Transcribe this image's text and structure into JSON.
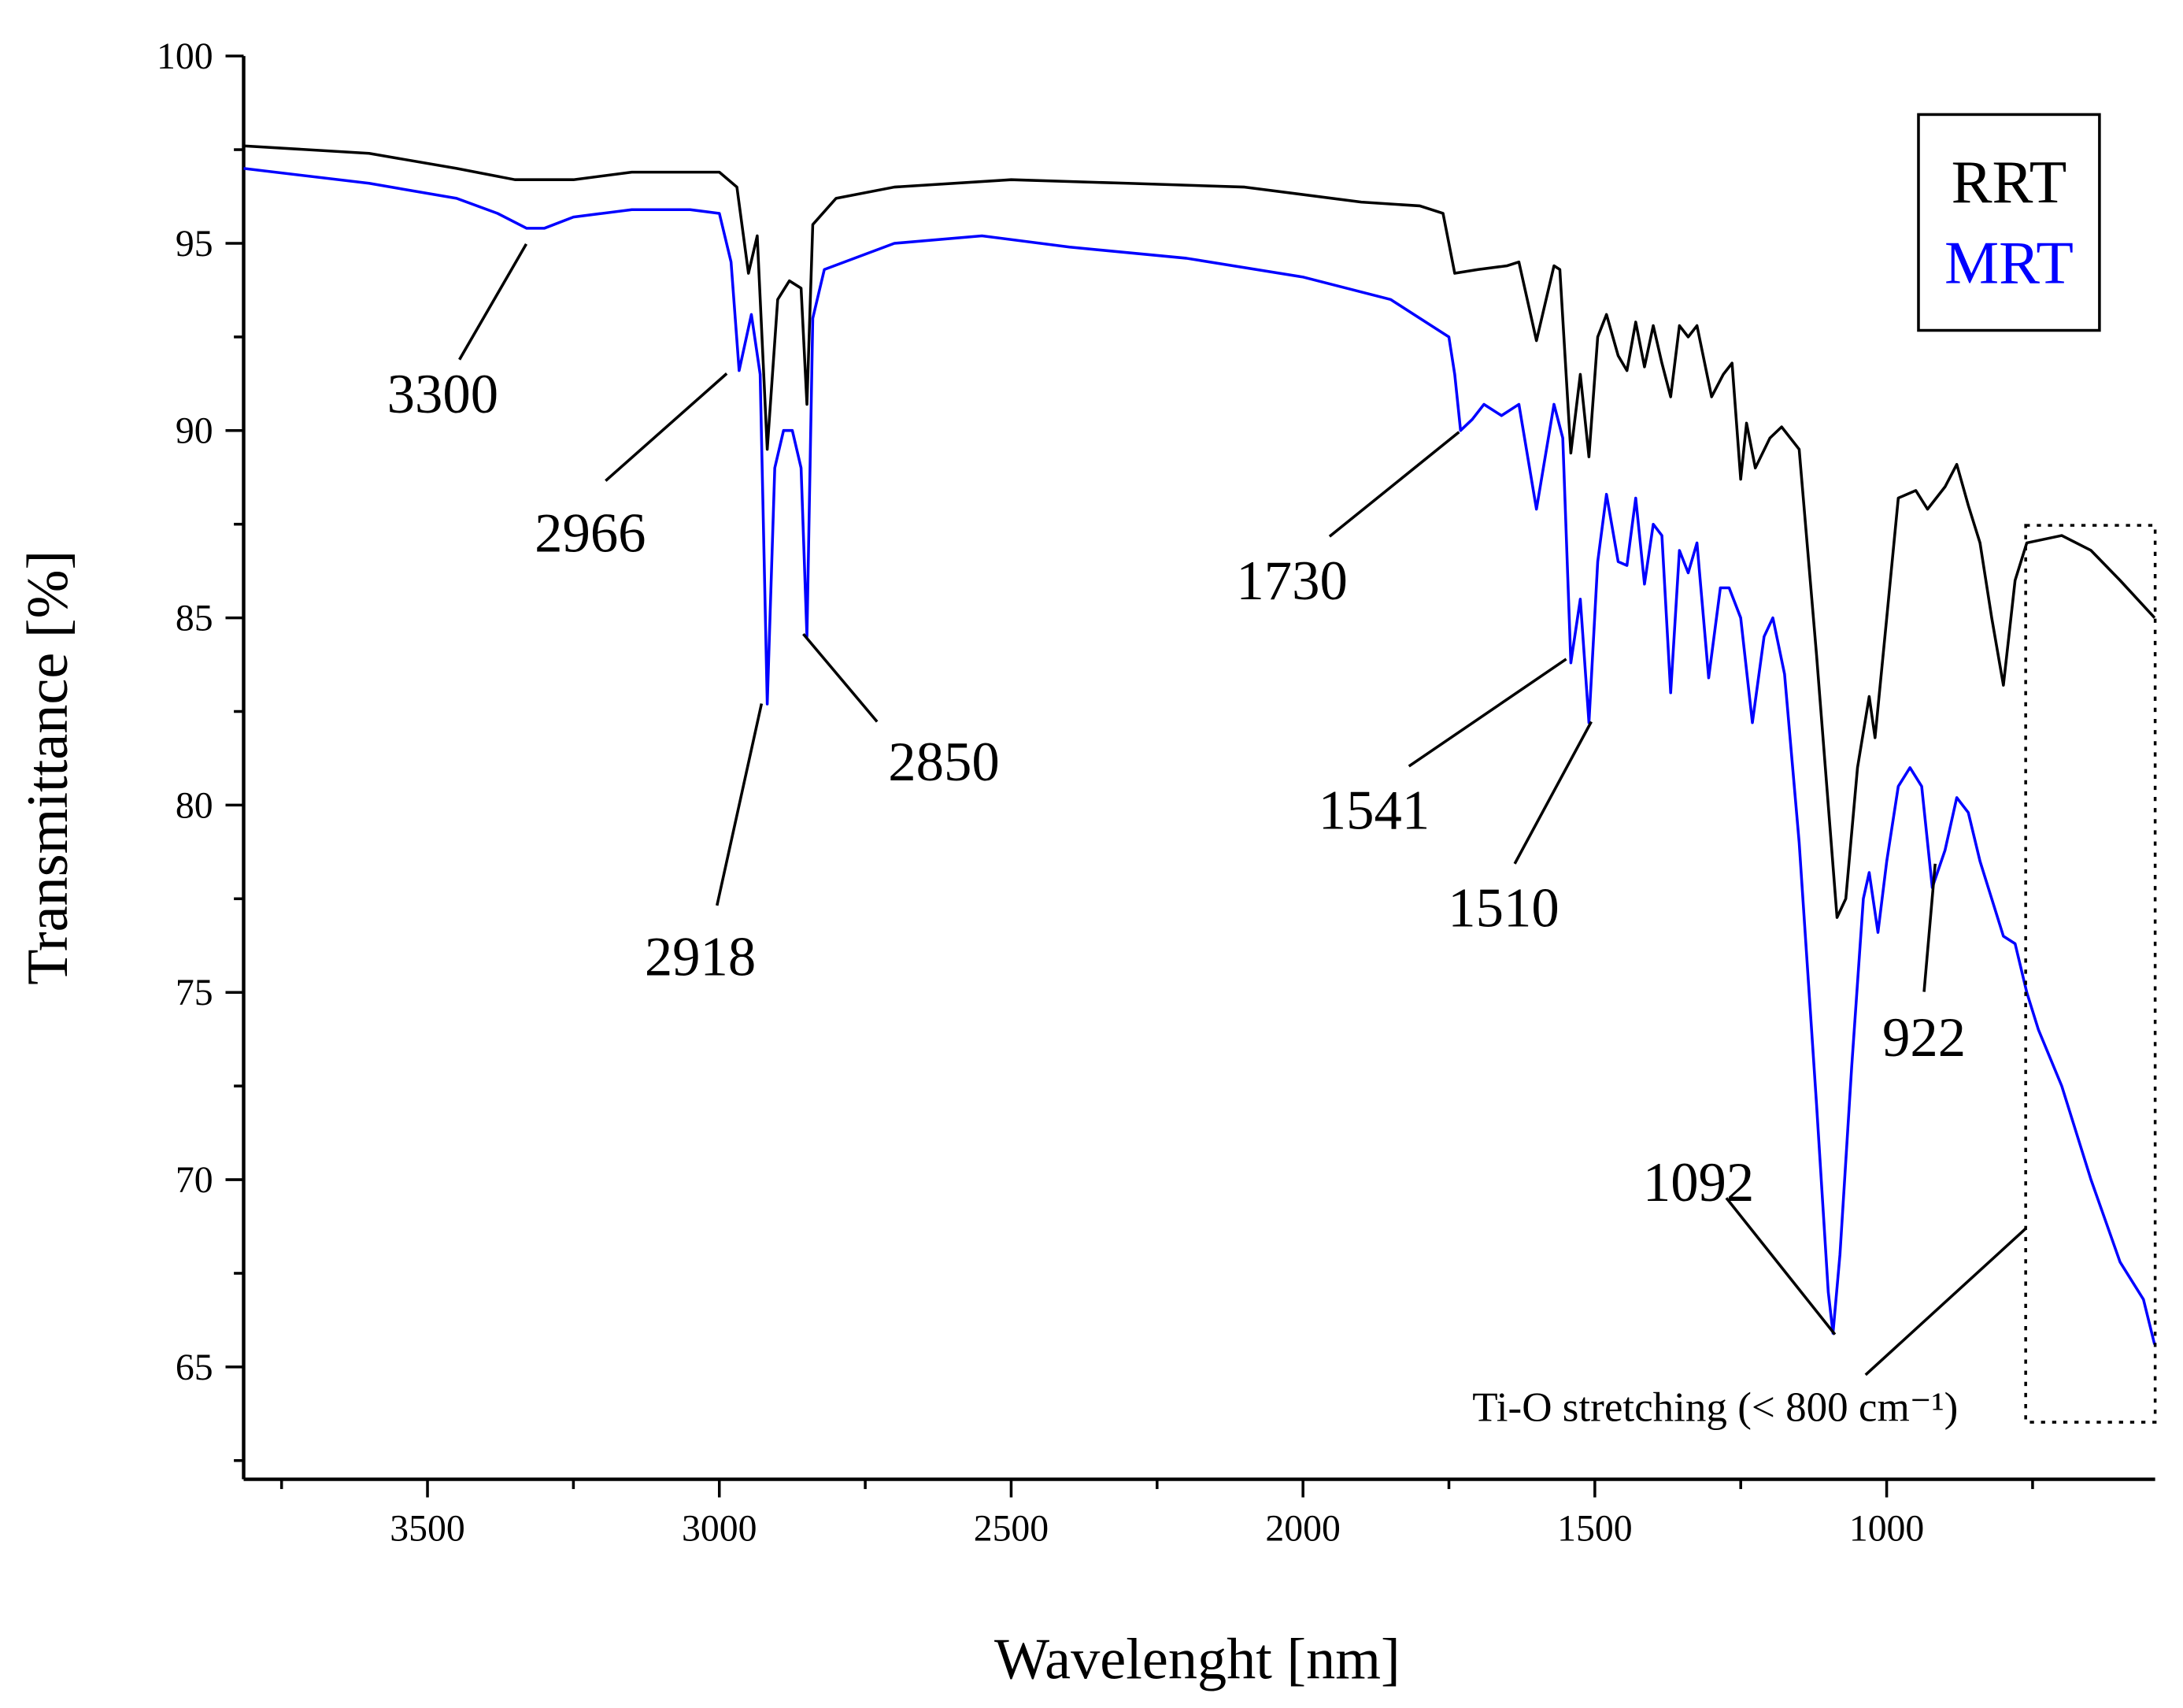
{
  "chart_data": {
    "type": "line",
    "x_label": "Wavelenght [nm]",
    "y_label": "Transmittance [%]",
    "xlim": [
      3815,
      540
    ],
    "ylim": [
      62,
      100
    ],
    "xticks": [
      3500,
      3000,
      2500,
      2000,
      1500,
      1000
    ],
    "yticks": [
      65,
      70,
      75,
      80,
      85,
      90,
      95,
      100
    ],
    "minor_ticks": true,
    "legend": "top-right",
    "series": [
      {
        "name": "RRT",
        "color": "#000000",
        "x": [
          3815,
          3600,
          3450,
          3350,
          3250,
          3150,
          3000,
          2970,
          2950,
          2935,
          2918,
          2900,
          2880,
          2860,
          2850,
          2840,
          2800,
          2700,
          2500,
          2300,
          2100,
          1900,
          1800,
          1760,
          1740,
          1700,
          1650,
          1630,
          1600,
          1570,
          1560,
          1541,
          1525,
          1510,
          1495,
          1480,
          1460,
          1445,
          1430,
          1415,
          1400,
          1385,
          1370,
          1355,
          1340,
          1325,
          1300,
          1280,
          1265,
          1250,
          1240,
          1225,
          1200,
          1180,
          1150,
          1120,
          1100,
          1085,
          1070,
          1050,
          1030,
          1020,
          1000,
          980,
          950,
          930,
          900,
          880,
          860,
          840,
          820,
          800,
          780,
          760,
          700,
          650,
          600,
          541
        ],
        "values": [
          97.6,
          97.4,
          97.0,
          96.7,
          96.7,
          96.9,
          96.9,
          96.5,
          94.2,
          95.2,
          89.5,
          93.5,
          94.0,
          93.8,
          90.7,
          95.5,
          96.2,
          96.5,
          96.7,
          96.6,
          96.5,
          96.1,
          96.0,
          95.8,
          94.2,
          94.3,
          94.4,
          94.5,
          92.4,
          94.4,
          94.3,
          89.4,
          91.5,
          89.3,
          92.5,
          93.1,
          92.0,
          91.6,
          92.9,
          91.7,
          92.8,
          91.8,
          90.9,
          92.8,
          92.5,
          92.8,
          90.9,
          91.5,
          91.8,
          88.7,
          90.2,
          89.0,
          89.8,
          90.1,
          89.5,
          84.0,
          80.0,
          77.0,
          77.5,
          81.0,
          82.9,
          81.8,
          85.0,
          88.2,
          88.4,
          87.9,
          88.5,
          89.1,
          88.0,
          87.0,
          85.0,
          83.2,
          86.0,
          87.0,
          87.2,
          86.8,
          86.0,
          85.0
        ]
      },
      {
        "name": "MRT",
        "color": "#0000ff",
        "x": [
          3815,
          3600,
          3450,
          3380,
          3330,
          3300,
          3250,
          3150,
          3050,
          3000,
          2980,
          2966,
          2945,
          2930,
          2918,
          2905,
          2890,
          2875,
          2860,
          2850,
          2840,
          2820,
          2700,
          2550,
          2400,
          2200,
          2000,
          1850,
          1750,
          1740,
          1730,
          1710,
          1690,
          1660,
          1630,
          1600,
          1570,
          1555,
          1541,
          1525,
          1510,
          1495,
          1480,
          1460,
          1445,
          1430,
          1415,
          1400,
          1385,
          1370,
          1355,
          1340,
          1325,
          1305,
          1285,
          1270,
          1250,
          1230,
          1210,
          1195,
          1175,
          1150,
          1120,
          1100,
          1092,
          1080,
          1060,
          1040,
          1030,
          1015,
          1000,
          980,
          960,
          940,
          922,
          900,
          880,
          860,
          840,
          820,
          800,
          780,
          760,
          740,
          700,
          650,
          600,
          560,
          541
        ],
        "values": [
          97.0,
          96.6,
          96.2,
          95.8,
          95.4,
          95.4,
          95.7,
          95.9,
          95.9,
          95.8,
          94.5,
          91.6,
          93.1,
          91.5,
          82.7,
          89.0,
          90.0,
          90.0,
          89.0,
          84.5,
          93.0,
          94.3,
          95.0,
          95.2,
          94.9,
          94.6,
          94.1,
          93.5,
          92.5,
          91.5,
          90.0,
          90.3,
          90.7,
          90.4,
          90.7,
          87.9,
          90.7,
          89.8,
          83.8,
          85.5,
          82.2,
          86.5,
          88.3,
          86.5,
          86.4,
          88.2,
          85.9,
          87.5,
          87.2,
          83.0,
          86.8,
          86.2,
          87.0,
          83.4,
          85.8,
          85.8,
          85.0,
          82.2,
          84.5,
          85.0,
          83.5,
          79.0,
          72.0,
          67.0,
          65.9,
          68.0,
          73.0,
          77.5,
          78.2,
          76.6,
          78.5,
          80.5,
          81.0,
          80.5,
          77.8,
          78.8,
          80.2,
          79.8,
          78.5,
          77.5,
          76.5,
          76.3,
          75.0,
          74.0,
          72.5,
          70.0,
          67.8,
          66.8,
          65.6
        ]
      }
    ],
    "annotations": [
      "3300",
      "2966",
      "2918",
      "2850",
      "1730",
      "1541",
      "1510",
      "1092",
      "922",
      "Ti-O stretching (< 800 cm⁻¹)"
    ]
  }
}
